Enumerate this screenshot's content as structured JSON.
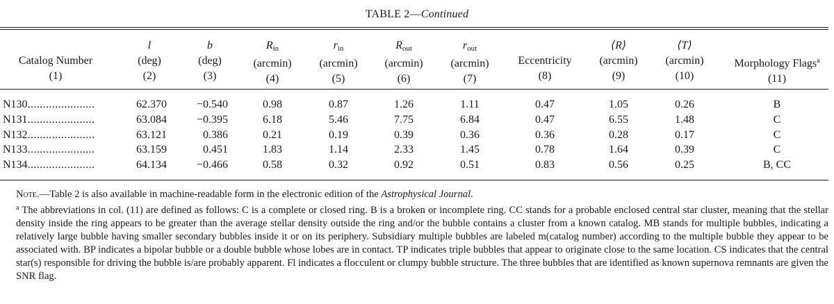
{
  "caption": {
    "label": "TABLE 2—",
    "continued": "Continued"
  },
  "columns": [
    {
      "sym": "",
      "name": "Catalog Number",
      "sub": "",
      "sup": "",
      "unit": "",
      "num": "(1)"
    },
    {
      "sym": "l",
      "name": "",
      "sub": "",
      "sup": "",
      "unit": "(deg)",
      "num": "(2)"
    },
    {
      "sym": "b",
      "name": "",
      "sub": "",
      "sup": "",
      "unit": "(deg)",
      "num": "(3)"
    },
    {
      "sym": "R",
      "name": "",
      "sub": "in",
      "sup": "",
      "unit": "(arcmin)",
      "num": "(4)"
    },
    {
      "sym": "r",
      "name": "",
      "sub": "in",
      "sup": "",
      "unit": "(arcmin)",
      "num": "(5)"
    },
    {
      "sym": "R",
      "name": "",
      "sub": "out",
      "sup": "",
      "unit": "(arcmin)",
      "num": "(6)"
    },
    {
      "sym": "r",
      "name": "",
      "sub": "out",
      "sup": "",
      "unit": "(arcmin)",
      "num": "(7)"
    },
    {
      "sym": "",
      "name": "Eccentricity",
      "sub": "",
      "sup": "",
      "unit": "",
      "num": "(8)"
    },
    {
      "sym": "⟨R⟩",
      "name": "",
      "sub": "",
      "sup": "",
      "unit": "(arcmin)",
      "num": "(9)"
    },
    {
      "sym": "⟨T⟩",
      "name": "",
      "sub": "",
      "sup": "",
      "unit": "(arcmin)",
      "num": "(10)"
    },
    {
      "sym": "",
      "name": "Morphology Flags",
      "sub": "",
      "sup": "a",
      "unit": "",
      "num": "(11)"
    }
  ],
  "rows": [
    {
      "id": "N130",
      "dots": "......................",
      "l": "62.370",
      "b": "−0.540",
      "rin_cap": "0.98",
      "rin": "0.87",
      "rout_cap": "1.26",
      "rout": "1.11",
      "ecc": "0.47",
      "R": "1.05",
      "T": "0.26",
      "flags": "B"
    },
    {
      "id": "N131",
      "dots": "......................",
      "l": "63.084",
      "b": "−0.395",
      "rin_cap": "6.18",
      "rin": "5.46",
      "rout_cap": "7.75",
      "rout": "6.84",
      "ecc": "0.47",
      "R": "6.55",
      "T": "1.48",
      "flags": "C"
    },
    {
      "id": "N132",
      "dots": "......................",
      "l": "63.121",
      "b": "0.386",
      "rin_cap": "0.21",
      "rin": "0.19",
      "rout_cap": "0.39",
      "rout": "0.36",
      "ecc": "0.36",
      "R": "0.28",
      "T": "0.17",
      "flags": "C"
    },
    {
      "id": "N133",
      "dots": "......................",
      "l": "63.159",
      "b": "0.451",
      "rin_cap": "1.83",
      "rin": "1.14",
      "rout_cap": "2.33",
      "rout": "1.45",
      "ecc": "0.78",
      "R": "1.64",
      "T": "0.39",
      "flags": "C"
    },
    {
      "id": "N134",
      "dots": "......................",
      "l": "64.134",
      "b": "−0.466",
      "rin_cap": "0.58",
      "rin": "0.32",
      "rout_cap": "0.92",
      "rout": "0.51",
      "ecc": "0.83",
      "R": "0.56",
      "T": "0.25",
      "flags": "B, CC"
    }
  ],
  "notes": {
    "note_label": "Note",
    "note_text_a": ".—Table 2 is also available in machine-readable form in the electronic edition of the ",
    "note_journal": "Astrophysical Journal",
    "note_text_b": ".",
    "footnote_mark": "a",
    "footnote_text": " The abbreviations in col. (11) are defined as follows: C is a complete or closed ring. B is a broken or incomplete ring. CC stands for a probable enclosed central star cluster, meaning that the stellar density inside the ring appears to be greater than the average stellar density outside the ring and/or the bubble contains a cluster from a known catalog. MB stands for multiple bubbles, indicating a relatively large bubble having smaller secondary bubbles inside it or on its periphery. Subsidiary multiple bubbles are labeled m(catalog number) according to the multiple bubble they appear to be associated with. BP indicates a bipolar bubble or a double bubble whose lobes are in contact. TP indicates triple bubbles that appear to originate close to the same location. CS indicates that the central star(s) responsible for driving the bubble is/are probably apparent. Fl indicates a flocculent or clumpy bubble structure. The three bubbles that are identified as known supernova remnants are given the SNR flag."
  }
}
